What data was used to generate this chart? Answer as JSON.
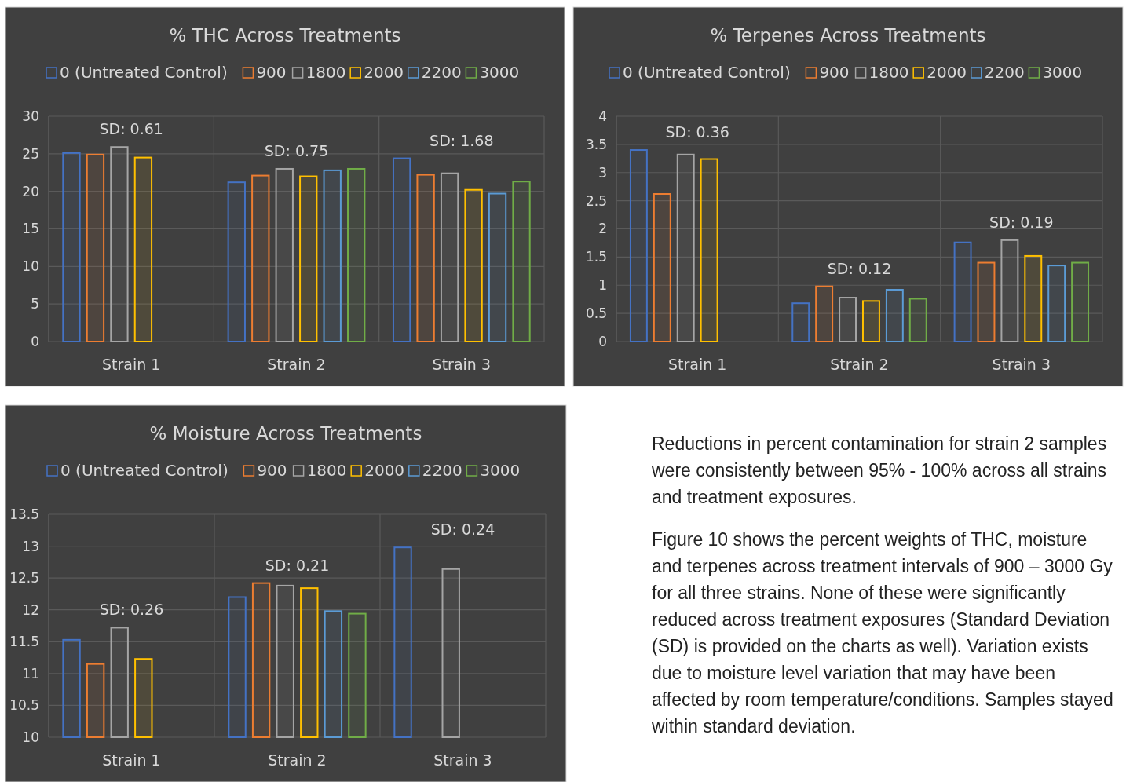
{
  "chart_data": [
    {
      "type": "bar",
      "title": "% THC Across Treatments",
      "categories": [
        "Strain 1",
        "Strain 2",
        "Strain 3"
      ],
      "series": [
        {
          "name": "0 (Untreated Control)",
          "color": "#4472c4",
          "values": [
            25.1,
            21.2,
            24.4
          ]
        },
        {
          "name": "900",
          "color": "#ed7d31",
          "values": [
            24.9,
            22.1,
            22.2
          ]
        },
        {
          "name": "1800",
          "color": "#a5a5a5",
          "values": [
            25.9,
            23.0,
            22.4
          ]
        },
        {
          "name": "2000",
          "color": "#ffc000",
          "values": [
            24.5,
            22.0,
            20.2
          ]
        },
        {
          "name": "2200",
          "color": "#5b9bd5",
          "values": [
            null,
            22.8,
            19.7
          ]
        },
        {
          "name": "3000",
          "color": "#70ad47",
          "values": [
            null,
            23.0,
            21.3
          ]
        }
      ],
      "ylim": [
        0,
        30
      ],
      "yticks": [
        0,
        5,
        10,
        15,
        20,
        25,
        30
      ],
      "grid": true,
      "legend": "top",
      "annotations": [
        "SD: 0.61",
        "SD: 0.75",
        "SD: 1.68"
      ]
    },
    {
      "type": "bar",
      "title": "% Terpenes Across Treatments",
      "categories": [
        "Strain 1",
        "Strain 2",
        "Strain 3"
      ],
      "series": [
        {
          "name": "0 (Untreated Control)",
          "color": "#4472c4",
          "values": [
            3.4,
            0.68,
            1.76
          ]
        },
        {
          "name": "900",
          "color": "#ed7d31",
          "values": [
            2.62,
            0.98,
            1.4
          ]
        },
        {
          "name": "1800",
          "color": "#a5a5a5",
          "values": [
            3.32,
            0.78,
            1.8
          ]
        },
        {
          "name": "2000",
          "color": "#ffc000",
          "values": [
            3.24,
            0.72,
            1.52
          ]
        },
        {
          "name": "2200",
          "color": "#5b9bd5",
          "values": [
            null,
            0.92,
            1.35
          ]
        },
        {
          "name": "3000",
          "color": "#70ad47",
          "values": [
            null,
            0.76,
            1.4
          ]
        }
      ],
      "ylim": [
        0,
        4
      ],
      "yticks": [
        0,
        0.5,
        1,
        1.5,
        2,
        2.5,
        3,
        3.5,
        4
      ],
      "grid": true,
      "legend": "top",
      "annotations": [
        "SD: 0.36",
        "SD: 0.12",
        "SD: 0.19"
      ]
    },
    {
      "type": "bar",
      "title": "% Moisture Across Treatments",
      "categories": [
        "Strain 1",
        "Strain 2",
        "Strain 3"
      ],
      "series": [
        {
          "name": "0 (Untreated Control)",
          "color": "#4472c4",
          "values": [
            11.53,
            12.2,
            12.98
          ]
        },
        {
          "name": "900",
          "color": "#ed7d31",
          "values": [
            11.15,
            12.42,
            null
          ]
        },
        {
          "name": "1800",
          "color": "#a5a5a5",
          "values": [
            11.72,
            12.38,
            12.64
          ]
        },
        {
          "name": "2000",
          "color": "#ffc000",
          "values": [
            11.23,
            12.34,
            null
          ]
        },
        {
          "name": "2200",
          "color": "#5b9bd5",
          "values": [
            null,
            11.98,
            null
          ]
        },
        {
          "name": "3000",
          "color": "#70ad47",
          "values": [
            null,
            11.94,
            null
          ]
        }
      ],
      "ylim": [
        10,
        13.5
      ],
      "yticks": [
        10,
        10.5,
        11,
        11.5,
        12,
        12.5,
        13,
        13.5
      ],
      "grid": true,
      "legend": "top",
      "annotations": [
        "SD: 0.26",
        "SD: 0.21",
        "SD: 0.24"
      ]
    },
    {
      "type": "other",
      "annotations": [
        "Reductions in percent contamination for strain 2 samples were consistently between 95% - 100% across all strains and treatment exposures.",
        "Figure 10 shows the percent weights of THC, moisture and terpenes across treatment intervals of 900 – 3000 Gy for all three strains. None of these were significantly reduced across treatment exposures (Standard Deviation (SD) is provided on the charts as well). Variation exists due to moisture level variation that may have been affected by room temperature/conditions. Samples stayed within standard deviation."
      ]
    }
  ]
}
